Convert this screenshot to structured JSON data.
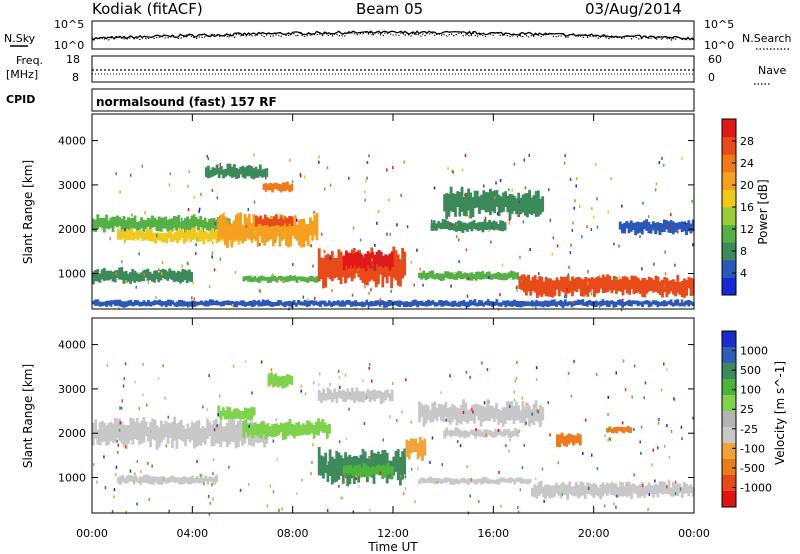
{
  "header": {
    "station": "Kodiak (fitACF)",
    "beam": "Beam 05",
    "date": "03/Aug/2014"
  },
  "summary_panels": {
    "nsky_label": "N.Sky",
    "nsearch_label": "N.Search",
    "nsky_ticks": [
      "10^5",
      "10^0"
    ],
    "nsky_right_ticks": [
      "10^5",
      "10^0"
    ],
    "freq_label_1": "Freq.",
    "freq_label_2": "[MHz]",
    "freq_ticks": [
      "18",
      "8"
    ],
    "nave_label": "Nave",
    "nave_ticks": [
      "60",
      "0"
    ],
    "cpid_label": "CPID",
    "cpid_value": "normalsound (fast) 157 RF"
  },
  "colors": {
    "power_scale": [
      "#1428d8",
      "#2a58b8",
      "#3c8a5a",
      "#55b046",
      "#9bcc3a",
      "#f0c81e",
      "#f5a020",
      "#f07a1a",
      "#e84a1a",
      "#e01818"
    ],
    "velocity_scale": [
      "#1a2acc",
      "#2f5fb4",
      "#3e8a5e",
      "#4cb43a",
      "#7fd24c",
      "#b4b4b4",
      "#c8c8c8",
      "#f2a23a",
      "#ee7a1e",
      "#e84a16",
      "#e01414"
    ]
  },
  "chart_data": [
    {
      "type": "heatmap",
      "panel": "power",
      "ylabel": "Slant Range [km]",
      "y_ticks": [
        "4000",
        "3000",
        "2000",
        "1000"
      ],
      "ylim": [
        200,
        4600
      ],
      "xlim": [
        "00:00",
        "00:00"
      ],
      "colorbar_label": "Power [dB]",
      "colorbar_ticks": [
        "28",
        "24",
        "20",
        "16",
        "12",
        "8",
        "4"
      ],
      "colorbar_range": [
        0,
        32
      ],
      "bands": [
        {
          "t0": 0.0,
          "t1": 5.5,
          "r0": 1950,
          "r1": 2300,
          "level": 10
        },
        {
          "t0": 1.0,
          "t1": 6.5,
          "r0": 1700,
          "r1": 2000,
          "level": 16
        },
        {
          "t0": 5.0,
          "t1": 9.0,
          "r0": 1650,
          "r1": 2300,
          "level": 22
        },
        {
          "t0": 6.5,
          "t1": 8.0,
          "r0": 2050,
          "r1": 2300,
          "level": 28
        },
        {
          "t0": 4.5,
          "t1": 7.0,
          "r0": 3150,
          "r1": 3450,
          "level": 8
        },
        {
          "t0": 6.8,
          "t1": 8.0,
          "r0": 2850,
          "r1": 3050,
          "level": 24
        },
        {
          "t0": 0.0,
          "t1": 4.0,
          "r0": 800,
          "r1": 1100,
          "level": 8
        },
        {
          "t0": 6.0,
          "t1": 9.0,
          "r0": 800,
          "r1": 950,
          "level": 12
        },
        {
          "t0": 9.0,
          "t1": 12.5,
          "r0": 750,
          "r1": 1500,
          "level": 26
        },
        {
          "t0": 10.0,
          "t1": 12.0,
          "r0": 1100,
          "r1": 1500,
          "level": 30
        },
        {
          "t0": 13.0,
          "t1": 17.0,
          "r0": 850,
          "r1": 1050,
          "level": 10
        },
        {
          "t0": 13.5,
          "t1": 16.5,
          "r0": 1950,
          "r1": 2200,
          "level": 8
        },
        {
          "t0": 17.0,
          "t1": 24.0,
          "r0": 500,
          "r1": 950,
          "level": 28
        },
        {
          "t0": 16.0,
          "t1": 24.0,
          "r0": 250,
          "r1": 400,
          "level": 6
        },
        {
          "t0": 0.0,
          "t1": 16.0,
          "r0": 250,
          "r1": 400,
          "level": 5
        },
        {
          "t0": 14.0,
          "t1": 18.0,
          "r0": 2300,
          "r1": 2900,
          "level": 9
        },
        {
          "t0": 21.0,
          "t1": 24.0,
          "r0": 1900,
          "r1": 2200,
          "level": 6
        }
      ]
    },
    {
      "type": "heatmap",
      "panel": "velocity",
      "ylabel": "Slant Range [km]",
      "xlabel": "Time UT",
      "x_ticks": [
        "00:00",
        "04:00",
        "08:00",
        "12:00",
        "16:00",
        "20:00",
        "00:00"
      ],
      "y_ticks": [
        "4000",
        "3000",
        "2000",
        "1000"
      ],
      "ylim": [
        200,
        4600
      ],
      "xlim": [
        "00:00",
        "00:00"
      ],
      "colorbar_label": "Velocity [m s^-1]",
      "colorbar_ticks": [
        "1000",
        "500",
        "100",
        "25",
        "-25",
        "-100",
        "-500",
        "-1000"
      ],
      "bands": [
        {
          "t0": 0.0,
          "t1": 7.0,
          "r0": 1700,
          "r1": 2300,
          "class": 6
        },
        {
          "t0": 1.0,
          "t1": 5.0,
          "r0": 850,
          "r1": 1050,
          "class": 6
        },
        {
          "t0": 6.0,
          "t1": 9.5,
          "r0": 1900,
          "r1": 2300,
          "class": 4
        },
        {
          "t0": 5.0,
          "t1": 6.5,
          "r0": 2300,
          "r1": 2600,
          "class": 4
        },
        {
          "t0": 7.0,
          "t1": 8.0,
          "r0": 3050,
          "r1": 3350,
          "class": 4
        },
        {
          "t0": 9.0,
          "t1": 12.0,
          "r0": 2700,
          "r1": 3000,
          "class": 6
        },
        {
          "t0": 9.0,
          "t1": 12.5,
          "r0": 900,
          "r1": 1600,
          "class": 2
        },
        {
          "t0": 10.0,
          "t1": 12.0,
          "r0": 1000,
          "r1": 1300,
          "class": 3
        },
        {
          "t0": 12.5,
          "t1": 13.3,
          "r0": 1400,
          "r1": 1900,
          "class": 7
        },
        {
          "t0": 13.0,
          "t1": 18.0,
          "r0": 2200,
          "r1": 2700,
          "class": 6
        },
        {
          "t0": 14.0,
          "t1": 17.0,
          "r0": 1900,
          "r1": 2100,
          "class": 6
        },
        {
          "t0": 18.5,
          "t1": 19.5,
          "r0": 1700,
          "r1": 2000,
          "class": 8
        },
        {
          "t0": 20.5,
          "t1": 21.5,
          "r0": 2000,
          "r1": 2150,
          "class": 8
        },
        {
          "t0": 17.5,
          "t1": 24.0,
          "r0": 550,
          "r1": 900,
          "class": 6
        },
        {
          "t0": 13.0,
          "t1": 17.5,
          "r0": 850,
          "r1": 1000,
          "class": 6
        }
      ]
    }
  ]
}
